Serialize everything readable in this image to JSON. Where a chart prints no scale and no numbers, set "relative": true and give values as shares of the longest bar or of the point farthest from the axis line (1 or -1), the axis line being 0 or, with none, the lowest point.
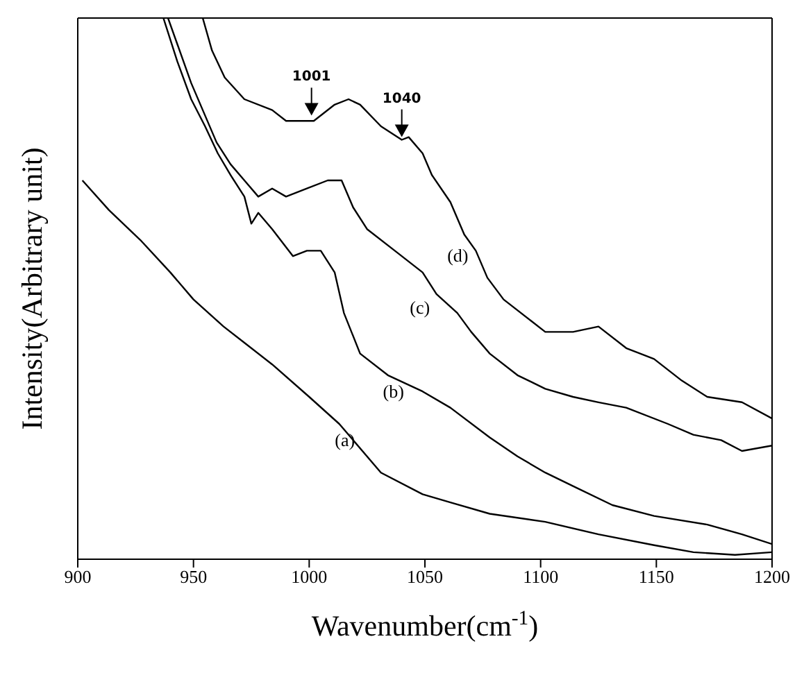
{
  "chart_data": {
    "type": "line",
    "xlabel": "Wavenumber(cm$^{-1}$)",
    "ylabel": "Intensity(Arbitrary unit)",
    "relative": true,
    "xlim": [
      900,
      1200
    ],
    "xticks": [
      900,
      950,
      1000,
      1050,
      1100,
      1150,
      1200
    ],
    "legend": false,
    "marker": "none",
    "line_style": "solid",
    "annotations": [
      {
        "text": "1001",
        "x": 1001,
        "y": 0.82
      },
      {
        "text": "1040",
        "x": 1040,
        "y": 0.78
      }
    ],
    "series": [
      {
        "name": "(a)",
        "color": "#000000",
        "x": [
          902,
          913.5,
          927,
          940,
          950,
          963,
          972,
          984,
          1000,
          1013,
          1031,
          1049,
          1061,
          1078,
          1102,
          1125,
          1149,
          1166,
          1184,
          1200
        ],
        "values": [
          0.7,
          0.645,
          0.59,
          0.53,
          0.48,
          0.43,
          0.4,
          0.36,
          0.3,
          0.25,
          0.16,
          0.12,
          0.105,
          0.084,
          0.069,
          0.046,
          0.026,
          0.013,
          0.008,
          0.013
        ]
      },
      {
        "name": "(b)",
        "color": "#000000",
        "x": [
          937,
          943,
          949,
          955,
          960.5,
          966,
          972,
          975,
          978,
          984,
          993,
          999,
          1005,
          1011,
          1015,
          1022,
          1034,
          1049,
          1061,
          1078,
          1090,
          1102,
          1114,
          1131,
          1149,
          1172,
          1187,
          1200
        ],
        "values": [
          1.0,
          0.92,
          0.85,
          0.8,
          0.75,
          0.71,
          0.67,
          0.62,
          0.64,
          0.61,
          0.56,
          0.57,
          0.57,
          0.53,
          0.455,
          0.38,
          0.34,
          0.31,
          0.28,
          0.225,
          0.19,
          0.16,
          0.135,
          0.1,
          0.08,
          0.064,
          0.046,
          0.028
        ]
      },
      {
        "name": "(c)",
        "color": "#000000",
        "x": [
          939,
          949,
          960,
          966,
          972,
          978,
          984,
          990,
          999,
          1008,
          1014,
          1019,
          1025,
          1037,
          1049,
          1055,
          1064,
          1070,
          1078,
          1090,
          1102,
          1114,
          1125,
          1137,
          1155,
          1166,
          1178,
          1187,
          1200
        ],
        "values": [
          1.0,
          0.88,
          0.77,
          0.73,
          0.7,
          0.67,
          0.685,
          0.67,
          0.685,
          0.7,
          0.7,
          0.65,
          0.61,
          0.57,
          0.53,
          0.49,
          0.455,
          0.42,
          0.38,
          0.34,
          0.315,
          0.3,
          0.29,
          0.28,
          0.25,
          0.23,
          0.22,
          0.2,
          0.21
        ]
      },
      {
        "name": "(d)",
        "color": "#000000",
        "x": [
          954,
          958,
          963.5,
          972,
          984,
          990,
          1002,
          1011,
          1017,
          1022,
          1031,
          1040,
          1043,
          1049,
          1053,
          1061,
          1067,
          1072,
          1077,
          1084,
          1096,
          1102,
          1114,
          1125,
          1137,
          1149,
          1161,
          1172,
          1187,
          1200
        ],
        "values": [
          1.0,
          0.94,
          0.89,
          0.85,
          0.83,
          0.81,
          0.81,
          0.84,
          0.85,
          0.84,
          0.8,
          0.775,
          0.78,
          0.75,
          0.71,
          0.66,
          0.6,
          0.57,
          0.52,
          0.48,
          0.44,
          0.42,
          0.42,
          0.43,
          0.39,
          0.37,
          0.33,
          0.3,
          0.29,
          0.26
        ]
      }
    ]
  }
}
